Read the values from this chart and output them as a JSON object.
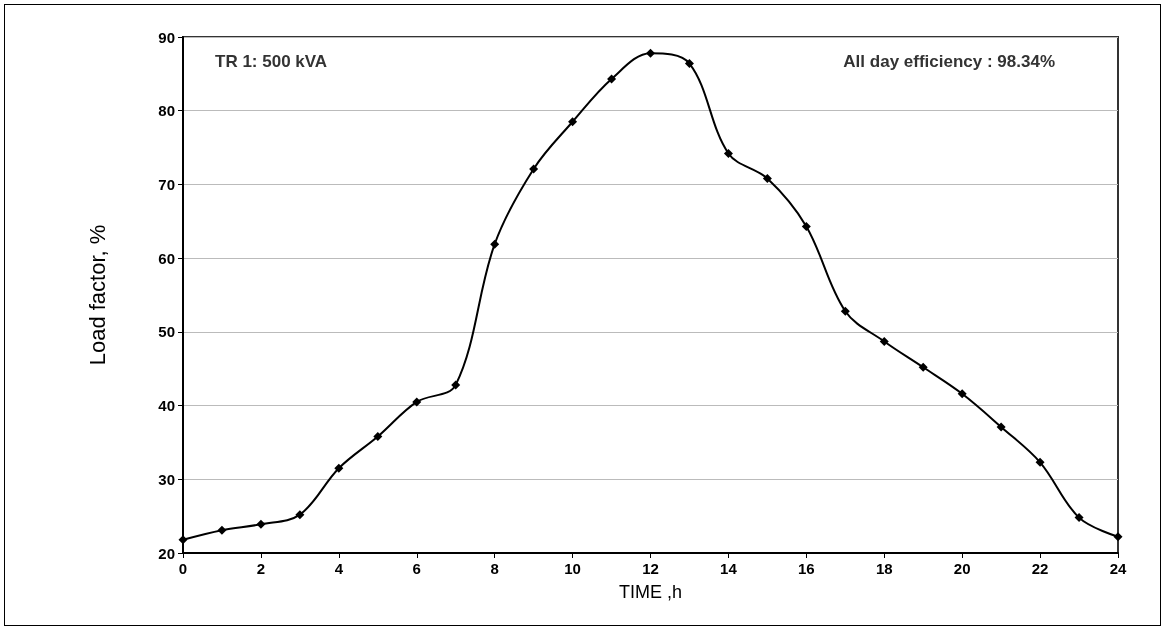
{
  "chart_data": {
    "type": "line",
    "xlabel": "TIME ,h",
    "ylabel": "Load factor, %",
    "annotations": [
      "TR 1: 500 kVA",
      "All day efficiency : 98.34%"
    ],
    "x": [
      0,
      1,
      2,
      3,
      4,
      5,
      6,
      7,
      8,
      9,
      10,
      11,
      12,
      13,
      14,
      15,
      16,
      17,
      18,
      19,
      20,
      21,
      22,
      23,
      24
    ],
    "series": [
      {
        "color": "#000000",
        "values": [
          21.8,
          23.1,
          23.9,
          25.2,
          31.5,
          35.8,
          40.5,
          42.8,
          61.9,
          72.1,
          78.5,
          84.3,
          87.8,
          86.4,
          74.2,
          70.8,
          64.3,
          52.8,
          48.7,
          45.2,
          41.6,
          37.1,
          32.3,
          24.8,
          22.2
        ]
      }
    ],
    "xlim": [
      0,
      24
    ],
    "xticks": [
      0,
      2,
      4,
      6,
      8,
      10,
      12,
      14,
      16,
      18,
      20,
      22,
      24
    ],
    "ylim": [
      20,
      90
    ],
    "yticks": [
      20,
      30,
      40,
      50,
      60,
      70,
      80,
      90
    ],
    "grid": "y",
    "marker": "diamond",
    "line_style": "solid"
  }
}
